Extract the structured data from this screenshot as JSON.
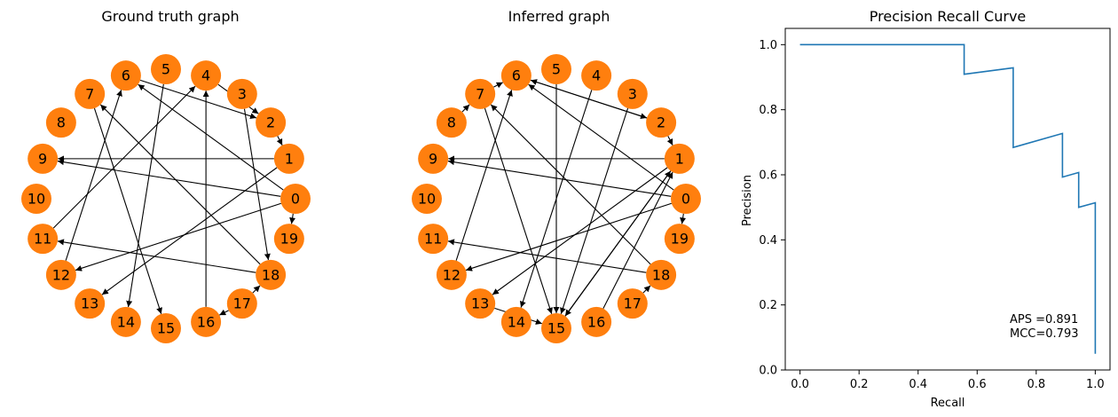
{
  "colors": {
    "node": "#ff7f0e",
    "edge": "#000000",
    "curve": "#1f77b4"
  },
  "chart_data": [
    {
      "type": "network",
      "title": "Ground truth graph",
      "nodes": [
        "0",
        "1",
        "2",
        "3",
        "4",
        "5",
        "6",
        "7",
        "8",
        "9",
        "10",
        "11",
        "12",
        "13",
        "14",
        "15",
        "16",
        "17",
        "18",
        "19"
      ],
      "edges": [
        [
          0,
          6
        ],
        [
          0,
          9
        ],
        [
          0,
          12
        ],
        [
          0,
          19
        ],
        [
          1,
          9
        ],
        [
          1,
          13
        ],
        [
          2,
          1
        ],
        [
          3,
          18
        ],
        [
          4,
          2
        ],
        [
          5,
          14
        ],
        [
          6,
          2
        ],
        [
          7,
          15
        ],
        [
          11,
          4
        ],
        [
          12,
          6
        ],
        [
          16,
          4
        ],
        [
          17,
          16
        ],
        [
          17,
          18
        ],
        [
          18,
          7
        ],
        [
          18,
          11
        ]
      ]
    },
    {
      "type": "network",
      "title": "Inferred graph",
      "nodes": [
        "0",
        "1",
        "2",
        "3",
        "4",
        "5",
        "6",
        "7",
        "8",
        "9",
        "10",
        "11",
        "12",
        "13",
        "14",
        "15",
        "16",
        "17",
        "18",
        "19"
      ],
      "edges": [
        [
          0,
          6
        ],
        [
          0,
          9
        ],
        [
          0,
          12
        ],
        [
          0,
          19
        ],
        [
          1,
          9
        ],
        [
          1,
          13
        ],
        [
          1,
          15
        ],
        [
          2,
          1
        ],
        [
          2,
          6
        ],
        [
          3,
          15
        ],
        [
          4,
          14
        ],
        [
          5,
          15
        ],
        [
          6,
          2
        ],
        [
          7,
          6
        ],
        [
          7,
          15
        ],
        [
          8,
          7
        ],
        [
          12,
          6
        ],
        [
          13,
          15
        ],
        [
          15,
          1
        ],
        [
          16,
          1
        ],
        [
          17,
          18
        ],
        [
          18,
          7
        ],
        [
          18,
          11
        ]
      ]
    },
    {
      "type": "line",
      "title": "Precision Recall Curve",
      "xlabel": "Recall",
      "ylabel": "Precision",
      "xlim": [
        -0.05,
        1.05
      ],
      "ylim": [
        0.0,
        1.05
      ],
      "xticks": [
        "0.0",
        "0.2",
        "0.4",
        "0.6",
        "0.8",
        "1.0"
      ],
      "yticks": [
        "0.0",
        "0.2",
        "0.4",
        "0.6",
        "0.8",
        "1.0"
      ],
      "series": [
        {
          "x": [
            0.0,
            0.556,
            0.556,
            0.722,
            0.722,
            0.889,
            0.889,
            0.944,
            0.944,
            1.0,
            1.0
          ],
          "y": [
            1.0,
            1.0,
            0.909,
            0.929,
            0.684,
            0.727,
            0.593,
            0.607,
            0.5,
            0.514,
            0.05
          ]
        }
      ],
      "annotations": [
        "APS =0.891",
        "MCC=0.793"
      ]
    }
  ]
}
